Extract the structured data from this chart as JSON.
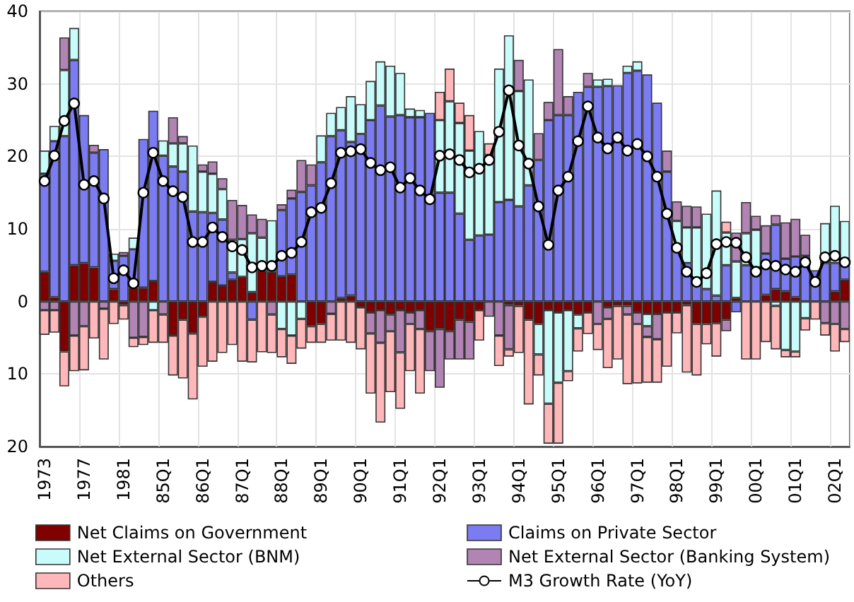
{
  "chart_data": {
    "type": "bar",
    "stacked": true,
    "grid": true,
    "legend": "bottom",
    "ylim": [
      -20,
      40
    ],
    "yticks": [
      {
        "value": -20,
        "label": "20"
      },
      {
        "value": -10,
        "label": "10"
      },
      0,
      10,
      20,
      30,
      40
    ],
    "categories": [
      "1973",
      null,
      null,
      null,
      "1977",
      null,
      null,
      null,
      "1981",
      null,
      null,
      null,
      "85Q1",
      null,
      null,
      null,
      "86Q1",
      null,
      null,
      null,
      "87Q1",
      null,
      null,
      null,
      "88Q1",
      null,
      null,
      null,
      "89Q1",
      null,
      null,
      null,
      "90Q1",
      null,
      null,
      null,
      "91Q1",
      null,
      null,
      null,
      "92Q1",
      null,
      null,
      null,
      "93Q1",
      null,
      null,
      null,
      "94Q1",
      null,
      null,
      null,
      "95Q1",
      null,
      null,
      null,
      "96Q1",
      null,
      null,
      null,
      "97Q1",
      null,
      null,
      null,
      "98Q1",
      null,
      null,
      null,
      "99Q1",
      null,
      null,
      null,
      "00Q1",
      null,
      null,
      null,
      "01Q1",
      null,
      null,
      null,
      "02Q1",
      null
    ],
    "series": [
      {
        "name": "Net Claims on Government",
        "color": "#800000",
        "values": [
          4.1,
          0.6,
          -6.9,
          5.0,
          5.3,
          4.7,
          null,
          1.7,
          -0.5,
          1.9,
          1.9,
          2.8,
          null,
          -4.7,
          -2.5,
          -4.4,
          -2.1,
          2.7,
          2.2,
          3.0,
          3.4,
          1.3,
          4.3,
          4.1,
          3.5,
          3.7,
          null,
          -3.4,
          -3.1,
          null,
          0.5,
          0.8,
          -0.8,
          -1.5,
          -1.2,
          -1.8,
          -1.2,
          -1.5,
          -1.2,
          -4.1,
          -3.8,
          -4.1,
          -2.5,
          -2.8,
          -1.2,
          null,
          null,
          -0.5,
          -0.6,
          -2.5,
          -3.1,
          -1.2,
          -1.5,
          -1.2,
          -1.8,
          -1.5,
          null,
          -0.8,
          -0.6,
          -0.6,
          -1.5,
          -1.7,
          -1.7,
          -1.5,
          -1.5,
          -0.5,
          -3.1,
          -3.1,
          -3.0,
          -2.5,
          0.5,
          null,
          null,
          0.9,
          1.7,
          1.4,
          0.6,
          null,
          null,
          null,
          1.4,
          3.0
        ]
      },
      {
        "name": "Claims on Private Sector",
        "color": "#7b7bf2",
        "values": [
          13.5,
          21.5,
          22.8,
          28.3,
          20.4,
          15.8,
          21.0,
          3.9,
          6.3,
          5.3,
          20.5,
          23.5,
          20.1,
          18.6,
          17.9,
          12.4,
          12.3,
          9.5,
          9.1,
          1.0,
          null,
          -2.5,
          null,
          null,
          9.1,
          10.5,
          15.1,
          16.0,
          19.2,
          22.8,
          23.1,
          21.2,
          23.1,
          25.0,
          27.0,
          25.5,
          25.7,
          25.4,
          25.4,
          26.0,
          15.0,
          15.0,
          12.1,
          8.5,
          9.1,
          9.2,
          13.7,
          14.0,
          13.1,
          16.0,
          19.5,
          25.0,
          25.7,
          25.7,
          28.9,
          29.6,
          29.6,
          29.7,
          29.8,
          31.5,
          31.8,
          31.3,
          27.4,
          17.9,
          7.9,
          5.3,
          2.7,
          1.7,
          0.8,
          5.0,
          -1.5,
          5.0,
          4.7,
          5.7,
          8.9,
          4.5,
          5.6,
          6.3,
          4.3,
          5.3,
          3.9,
          2.3
        ]
      },
      {
        "name": "Net External Sector (BNM)",
        "color": "#c8fcfa",
        "values": [
          3.2,
          2.1,
          9.1,
          4.4,
          null,
          null,
          null,
          1.0,
          null,
          1.6,
          null,
          -1.2,
          2.1,
          3.2,
          3.9,
          9.1,
          5.6,
          5.4,
          4.2,
          4.5,
          5.2,
          8.1,
          4.5,
          7.1,
          -3.8,
          -4.7,
          -2.4,
          null,
          3.7,
          3.2,
          3.2,
          6.3,
          4.1,
          5.4,
          6.1,
          7.0,
          5.8,
          1.2,
          1.0,
          null,
          10.0,
          12.6,
          12.5,
          12.3,
          14.4,
          11.0,
          18.4,
          22.7,
          15.9,
          14.6,
          -4.2,
          -12.9,
          -9.7,
          -8.4,
          -1.9,
          null,
          1.0,
          1.0,
          null,
          1.0,
          1.3,
          -1.7,
          null,
          null,
          3.2,
          4.9,
          7.5,
          10.4,
          14.5,
          4.5,
          5.0,
          4.4,
          5.2,
          null,
          -0.6,
          -6.7,
          -6.9,
          -2.3,
          null,
          5.5,
          7.9,
          5.8
        ]
      },
      {
        "name": "Net External Sector (Banking System)",
        "color": "#b184b4",
        "values": [
          -1.2,
          -1.2,
          4.5,
          -4.7,
          -3.4,
          1.1,
          -1.0,
          null,
          0.5,
          -5.0,
          -4.9,
          null,
          -1.8,
          3.6,
          1.0,
          null,
          1.0,
          1.7,
          1.5,
          5.5,
          4.7,
          2.6,
          2.6,
          -1.8,
          0.8,
          1.2,
          4.4,
          2.9,
          null,
          -1.7,
          null,
          null,
          null,
          -2.9,
          -4.5,
          -2.3,
          -5.8,
          -1.6,
          -2.6,
          -5.5,
          -8.1,
          -3.9,
          -5.5,
          -5.2,
          null,
          -2.1,
          -4.7,
          -6.1,
          4.3,
          null,
          3.7,
          2.5,
          9.1,
          2.6,
          null,
          1.9,
          -3.1,
          -1.6,
          null,
          -1.2,
          -1.6,
          -1.5,
          -3.5,
          2.9,
          2.7,
          3.0,
          2.9,
          null,
          null,
          -1.6,
          4.0,
          4.3,
          1.9,
          3.9,
          1.3,
          5.0,
          5.2,
          2.9,
          null,
          -3.0,
          -3.1,
          -3.8
        ]
      },
      {
        "name": "Others",
        "color": "#ffb7b9",
        "values": [
          -3.4,
          -3.1,
          -4.8,
          -4.9,
          -6.1,
          -5.1,
          -7.0,
          -3.1,
          -2.0,
          -1.3,
          -1.1,
          -4.5,
          -3.9,
          -5.5,
          -8.1,
          -9.1,
          -6.9,
          -8.3,
          -7.1,
          -6.0,
          -8.3,
          -5.9,
          -7.0,
          -5.3,
          -3.9,
          -3.9,
          -4.1,
          -2.3,
          -2.6,
          -3.7,
          -5.4,
          -5.7,
          -5.8,
          -8.3,
          -11.0,
          -8.4,
          -7.8,
          -6.5,
          -8.9,
          null,
          3.9,
          4.5,
          2.8,
          4.9,
          -4.2,
          1.6,
          -4.2,
          -1.0,
          -6.5,
          -11.7,
          -2.9,
          -5.5,
          -8.4,
          -1.4,
          -3.2,
          -3.0,
          -3.6,
          -6.8,
          -7.4,
          -9.6,
          -8.2,
          -6.3,
          -6.0,
          -7.5,
          -2.9,
          -9.3,
          -7.1,
          -2.8,
          -4.6,
          1.5,
          null,
          -8.0,
          -8.0,
          -5.6,
          -6.0,
          -1.0,
          -0.8,
          -1.7,
          -2.5,
          -1.7,
          -3.8,
          -1.8
        ]
      },
      {
        "name": "M3 Growth Rate (YoY)",
        "type": "line",
        "color": "#000000",
        "marker": "circle",
        "line_style": "solid",
        "values": [
          16.6,
          20.1,
          24.9,
          27.3,
          16.1,
          16.6,
          14.2,
          3.2,
          4.3,
          2.5,
          15.0,
          20.5,
          16.6,
          15.2,
          14.4,
          8.2,
          8.2,
          10.2,
          8.9,
          7.6,
          7.1,
          4.7,
          4.9,
          4.9,
          6.3,
          6.7,
          8.2,
          12.3,
          12.9,
          16.3,
          20.5,
          20.7,
          21.0,
          19.1,
          18.1,
          18.5,
          15.7,
          17.0,
          15.3,
          14.1,
          20.1,
          20.3,
          19.5,
          17.8,
          18.3,
          19.5,
          23.4,
          29.1,
          21.5,
          19.0,
          13.1,
          7.8,
          15.3,
          17.2,
          22.1,
          26.9,
          22.6,
          21.1,
          22.6,
          20.8,
          21.7,
          20.0,
          17.2,
          12.1,
          7.4,
          4.1,
          2.7,
          3.9,
          7.9,
          8.2,
          8.1,
          6.1,
          4.1,
          5.1,
          4.9,
          4.4,
          4.1,
          5.4,
          2.7,
          6.1,
          6.3,
          5.4
        ]
      }
    ]
  }
}
